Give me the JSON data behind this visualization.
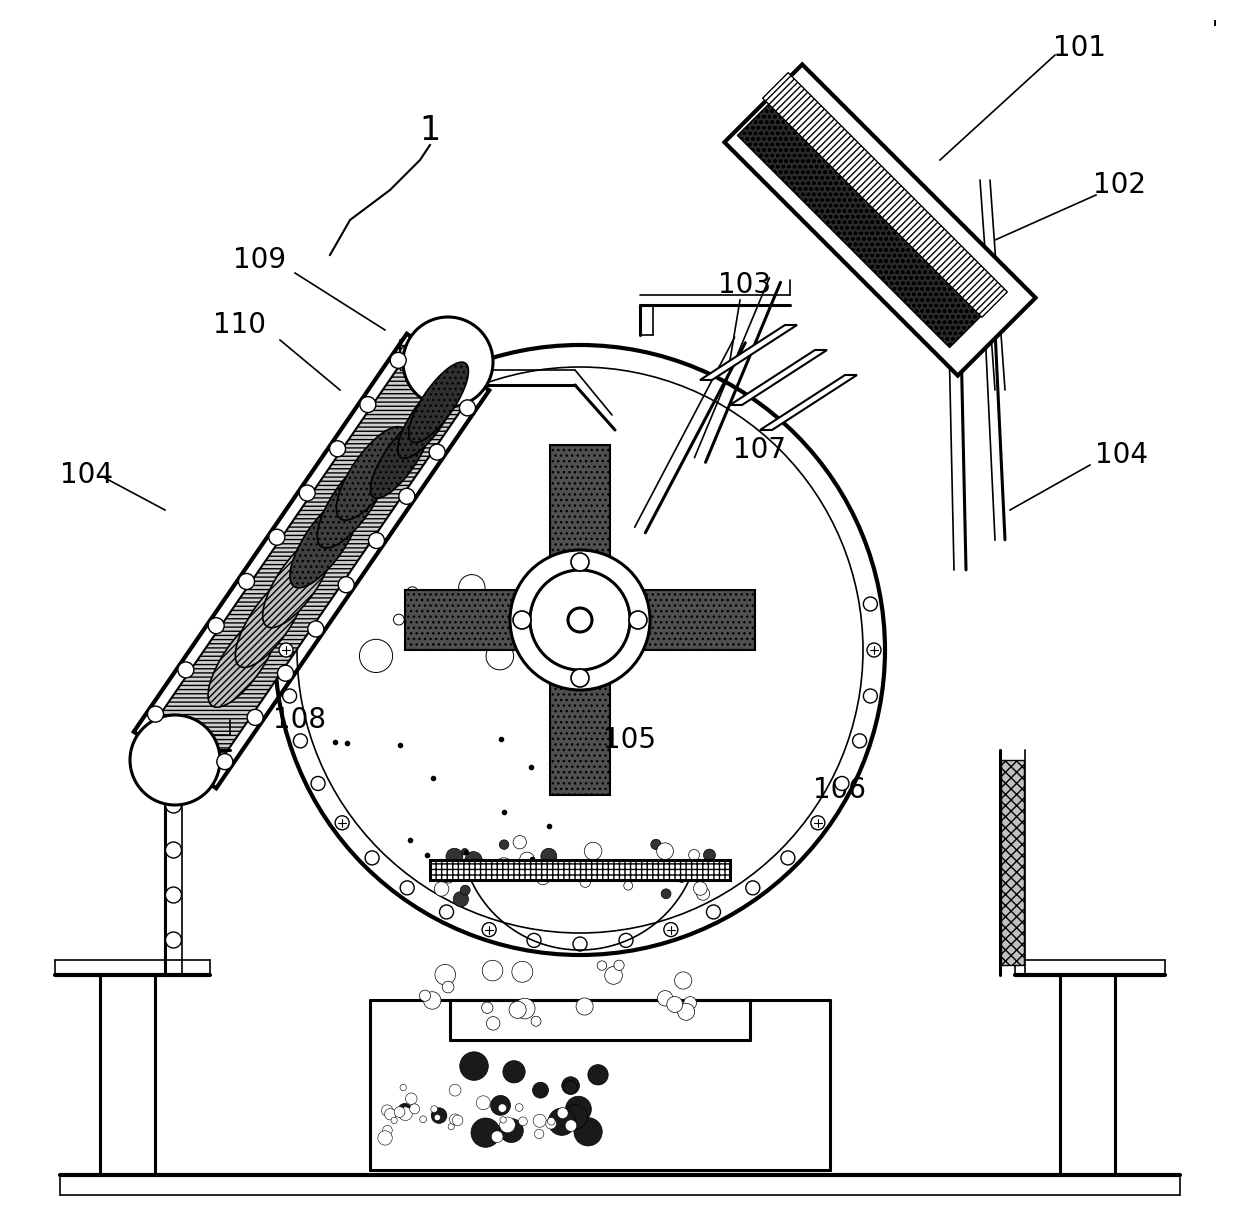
{
  "bg_color": "#ffffff",
  "line_color": "#000000",
  "label_color": "#000000"
}
